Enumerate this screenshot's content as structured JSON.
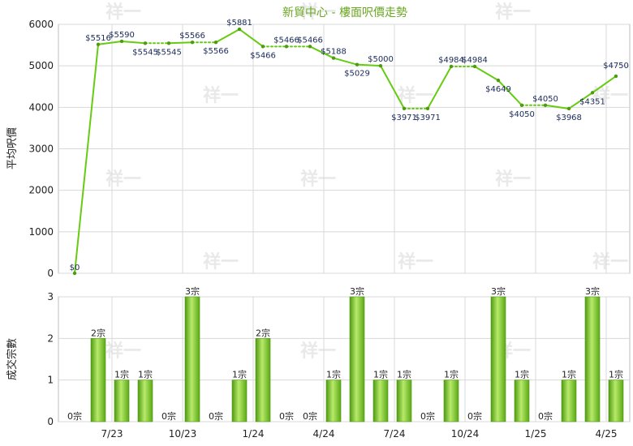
{
  "chart_data": [
    {
      "type": "line",
      "title": "新貿中心 - 樓面呎價走勢",
      "ylabel": "平均呎價",
      "ylim": [
        0,
        6000
      ],
      "yticks": [
        "0",
        "1000",
        "2000",
        "3000",
        "4000",
        "5000",
        "6000"
      ],
      "xticks": [
        "7/23",
        "10/23",
        "1/24",
        "4/24",
        "7/24",
        "10/24",
        "1/25",
        "4/25"
      ],
      "grid": true,
      "line_color": "#66cc11",
      "series": [
        {
          "values": [
            0,
            5516,
            5590,
            5545,
            5545,
            5566,
            5566,
            5881,
            5466,
            5466,
            5466,
            5188,
            5029,
            5000,
            3971,
            3971,
            4984,
            4984,
            4649,
            4050,
            4050,
            3968,
            4351,
            4750
          ],
          "labels": [
            "$0",
            "$5516",
            "$5590",
            "$5545",
            "$5545",
            "$5566",
            "$5566",
            "$5881",
            "$5466",
            "$5466",
            "$5466",
            "$5188",
            "$5029",
            "$5000",
            "$3971",
            "$3971",
            "$4984",
            "$4984",
            "$4649",
            "$4050",
            "$4050",
            "$3968",
            "$4351",
            "$4750"
          ],
          "dotted_flat_segments": [
            [
              3,
              4
            ],
            [
              5,
              6
            ],
            [
              8,
              10
            ],
            [
              14,
              15
            ],
            [
              16,
              17
            ],
            [
              19,
              20
            ]
          ]
        }
      ]
    },
    {
      "type": "bar",
      "ylabel": "成交宗數",
      "ylim": [
        0,
        3
      ],
      "yticks": [
        "0",
        "1",
        "2",
        "3"
      ],
      "xticks": [
        "7/23",
        "10/23",
        "1/24",
        "4/24",
        "7/24",
        "10/24",
        "1/25",
        "4/25"
      ],
      "bar_color": "#77cc22",
      "values": [
        0,
        2,
        1,
        1,
        0,
        3,
        0,
        1,
        2,
        0,
        0,
        1,
        3,
        1,
        1,
        0,
        1,
        0,
        3,
        1,
        0,
        1,
        3,
        1
      ],
      "labels": [
        "0宗",
        "2宗",
        "1宗",
        "1宗",
        "0宗",
        "3宗",
        "0宗",
        "1宗",
        "2宗",
        "0宗",
        "0宗",
        "1宗",
        "3宗",
        "1宗",
        "1宗",
        "0宗",
        "1宗",
        "0宗",
        "3宗",
        "1宗",
        "0宗",
        "1宗",
        "3宗",
        "1宗"
      ]
    }
  ],
  "watermark": "祥一"
}
